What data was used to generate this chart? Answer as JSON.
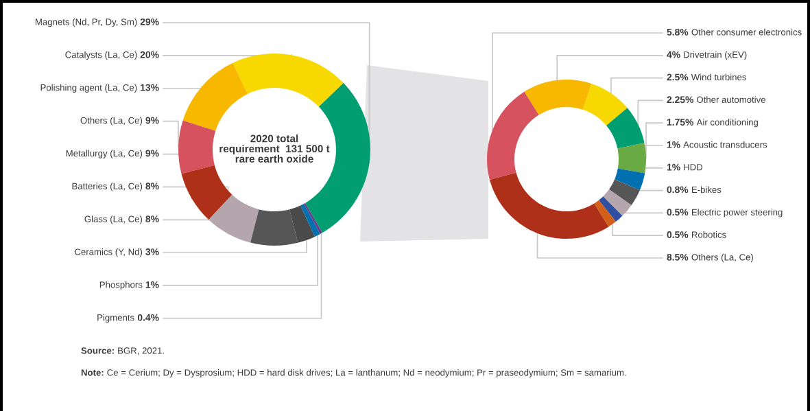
{
  "chart_data": [
    {
      "type": "donut",
      "categories": [
        "Magnets (Nd, Pr, Dy, Sm)",
        "Catalysts (La, Ce)",
        "Polishing agent (La, Ce)",
        "Others (La, Ce)",
        "Metallurgy (La, Ce)",
        "Batteries (La, Ce)",
        "Glass (La, Ce)",
        "Ceramics (Y, Nd)",
        "Phosphors",
        "Pigments"
      ],
      "values": [
        29,
        20,
        13,
        9,
        9,
        8,
        8,
        3,
        1,
        0.4
      ],
      "value_labels": [
        "29%",
        "20%",
        "13%",
        "9%",
        "9%",
        "8%",
        "8%",
        "3%",
        "1%",
        "0.4%"
      ],
      "colors": [
        "#009e70",
        "#f7d800",
        "#f9b800",
        "#d6525f",
        "#ae3018",
        "#b5a5ac",
        "#565656",
        "#4a4a4a",
        "#0070b0",
        "#6b3a8a"
      ],
      "annotations": [
        "2020 total\nrequirement  131 500 t\nrare earth oxide",
        "Source: BGR, 2021.",
        "Note: Ce = Cerium; Dy = Dysprosium; HDD = hard disk drives; La = lanthanum; Nd = neodymium; Pr = praseodymium; Sm = samarium."
      ]
    },
    {
      "type": "donut",
      "categories": [
        "Other consumer electronics",
        "Drivetrain (xEV)",
        "Wind turbines",
        "Other automotive",
        "Air conditioning",
        "Acoustic transducers",
        "HDD",
        "E-bikes",
        "Electric power steering",
        "Robotics",
        "Others (La, Ce)"
      ],
      "values": [
        5.8,
        4,
        2.5,
        2.25,
        1.75,
        1,
        1,
        0.8,
        0.5,
        0.5,
        8.5
      ],
      "value_labels": [
        "5.8%",
        "4%",
        "2.5%",
        "2.25%",
        "1.75%",
        "1%",
        "1%",
        "0.8%",
        "0.5%",
        "0.5%",
        "8.5%"
      ],
      "colors": [
        "#d6525f",
        "#f9b800",
        "#f7d800",
        "#009e70",
        "#6aaa44",
        "#0070b0",
        "#565656",
        "#b5a5ac",
        "#2f4fa0",
        "#d2601a",
        "#ae3018"
      ]
    }
  ]
}
